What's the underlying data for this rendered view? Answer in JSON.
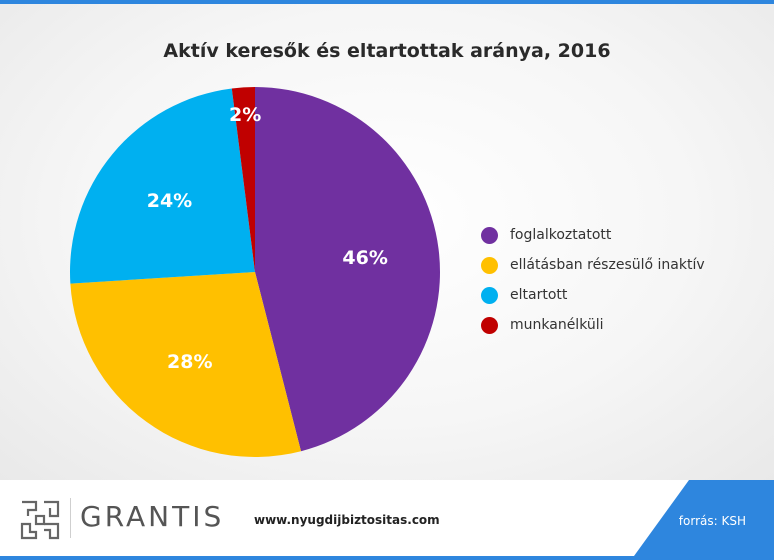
{
  "chart_data": {
    "type": "pie",
    "title": "Aktív keresők és eltartottak aránya, 2016",
    "slices": [
      {
        "name": "foglalkoztatott",
        "value": 46,
        "label": "46%",
        "color": "#7030a0"
      },
      {
        "name": "ellátásban részesülő inaktív",
        "value": 28,
        "label": "28%",
        "color": "#ffc000"
      },
      {
        "name": "eltartott",
        "value": 24,
        "label": "24%",
        "color": "#00b0f0"
      },
      {
        "name": "munkanélküli",
        "value": 2,
        "label": "2%",
        "color": "#c00000"
      }
    ],
    "legend_position": "right"
  },
  "footer": {
    "brand": "GRANTIS",
    "website": "www.nyugdijbiztositas.com",
    "source": "forrás: KSH"
  },
  "colors": {
    "accent": "#2e86de"
  }
}
